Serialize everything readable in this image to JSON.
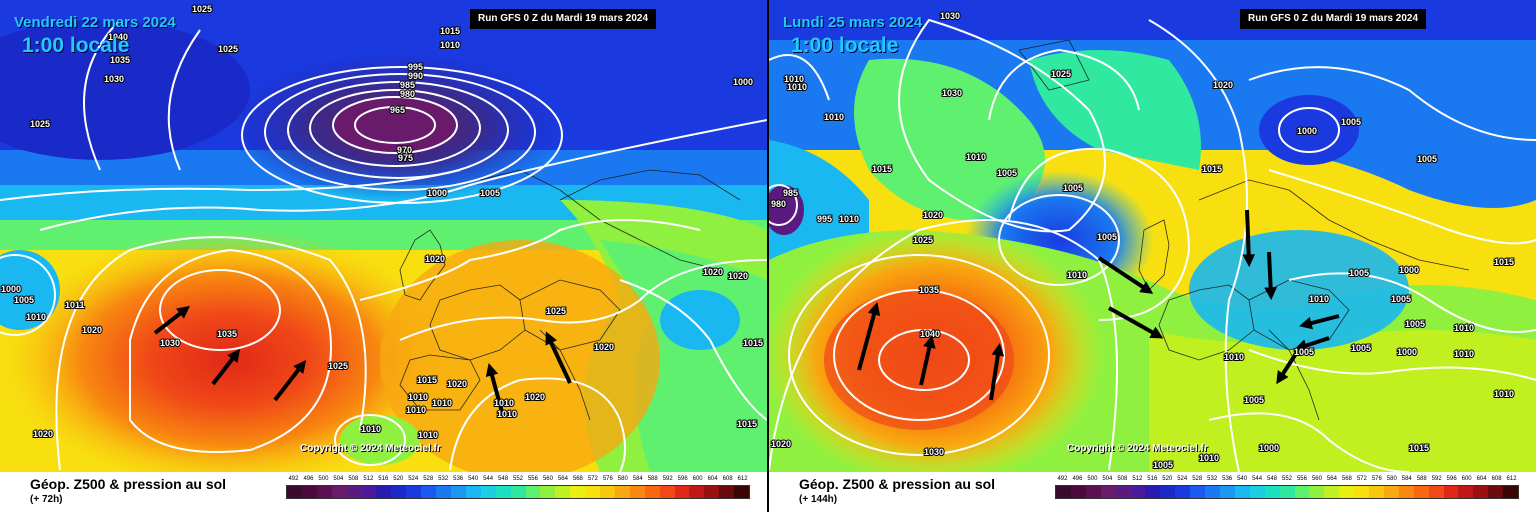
{
  "legend_values": [
    "492",
    "496",
    "500",
    "504",
    "508",
    "512",
    "516",
    "520",
    "524",
    "528",
    "532",
    "536",
    "540",
    "544",
    "548",
    "552",
    "556",
    "560",
    "564",
    "568",
    "572",
    "576",
    "580",
    "584",
    "588",
    "592",
    "596",
    "600",
    "604",
    "608",
    "612"
  ],
  "legend_colors": [
    "#3a0a2a",
    "#4a0a3a",
    "#5a1050",
    "#6a1a6a",
    "#5a1a80",
    "#4a1a9a",
    "#2a1ab0",
    "#1a2ac8",
    "#1a3ae0",
    "#1a5af0",
    "#1a78f0",
    "#1a98f0",
    "#1ab8f0",
    "#1ad0e0",
    "#1ae0c0",
    "#30e8a0",
    "#60f070",
    "#90f040",
    "#c0f020",
    "#e8f010",
    "#f8e010",
    "#f8c810",
    "#f8a810",
    "#f88810",
    "#f86810",
    "#f04818",
    "#e02818",
    "#c01818",
    "#9a1010",
    "#6a0a0a",
    "#3a0505"
  ],
  "left": {
    "date": "Vendredi 22 mars 2024",
    "heure": "1:00 locale",
    "run": "Run GFS 0 Z du Mardi 19 mars 2024",
    "copyright": "Copyright © 2024 Meteociel.fr",
    "title": "Géop. Z500 & pression au sol",
    "echeance": "(+ 72h)",
    "isobar_labels": [
      "1025",
      "1040",
      "1035",
      "1030",
      "1025",
      "1025",
      "1015",
      "1010",
      "995",
      "990",
      "985",
      "980",
      "965",
      "970",
      "975",
      "1000",
      "1000",
      "1005",
      "1000",
      "1005",
      "1011",
      "1010",
      "1020",
      "1030",
      "1035",
      "1020",
      "1025",
      "1025",
      "1020",
      "1020",
      "1015",
      "1020",
      "1010",
      "1015",
      "1010",
      "1010",
      "1020",
      "1010",
      "1020",
      "1010",
      "1010",
      "1015",
      "1010",
      "1020"
    ],
    "arrows": [
      "arrow",
      "arrow",
      "arrow",
      "arrow",
      "arrow"
    ]
  },
  "right": {
    "date": "Lundi 25 mars 2024",
    "heure": "1:00 locale",
    "run": "Run GFS 0 Z du Mardi 19 mars 2024",
    "copyright": "Copyright © 2024 Meteociel.fr",
    "title": "Géop. Z500 & pression au sol",
    "echeance": "(+ 144h)",
    "isobar_labels": [
      "1030",
      "1025",
      "1020",
      "1030",
      "1010",
      "1010",
      "1010",
      "1015",
      "1010",
      "1020",
      "1025",
      "1005",
      "1005",
      "1005",
      "1010",
      "985",
      "980",
      "995",
      "1010",
      "1015",
      "1000",
      "1005",
      "1005",
      "1035",
      "1040",
      "1030",
      "1005",
      "1010",
      "1000",
      "1005",
      "1010",
      "1005",
      "1005",
      "1005",
      "1010",
      "1000",
      "1005",
      "1015",
      "1010",
      "1010",
      "1020",
      "1000",
      "1005",
      "1015",
      "1010"
    ],
    "arrows": [
      "arrow",
      "arrow",
      "arrow",
      "arrow",
      "arrow",
      "arrow",
      "arrow",
      "arrow",
      "arrow",
      "arrow"
    ]
  }
}
